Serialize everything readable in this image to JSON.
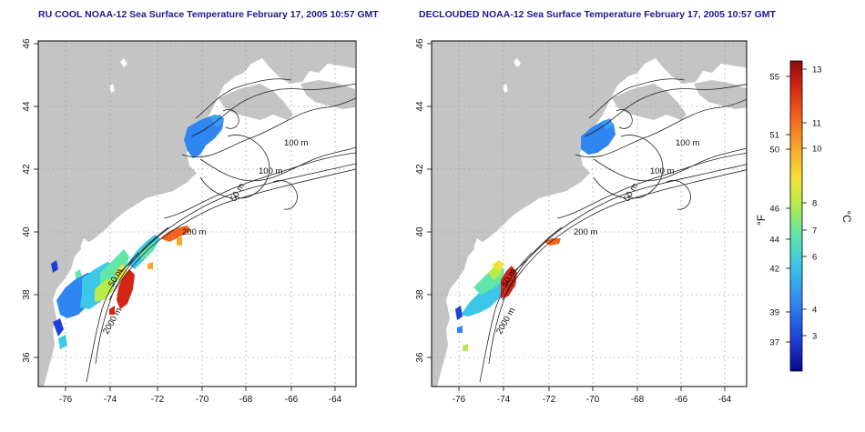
{
  "panels": [
    {
      "title": "RU COOL NOAA-12 Sea Surface Temperature February 17, 2005 10:57 GMT",
      "contours": [
        "100 m",
        "100 m",
        "50 m",
        "200 m",
        "50 m",
        "2000 m"
      ]
    },
    {
      "title": "DECLOUDED NOAA-12 Sea Surface Temperature February 17, 2005 10:57 GMT",
      "contours": [
        "100 m",
        "100 m",
        "50 m",
        "200 m",
        "50 m",
        "2000 m"
      ]
    }
  ],
  "axes": {
    "lon_ticks": [
      "-76",
      "-74",
      "-72",
      "-70",
      "-68",
      "-66",
      "-64"
    ],
    "lat_ticks": [
      "46",
      "44",
      "42",
      "40",
      "38",
      "36"
    ]
  },
  "colorbar": {
    "f_unit": "°F",
    "c_unit": "°C",
    "f_ticks": [
      "55",
      "51",
      "50",
      "46",
      "44",
      "42",
      "39",
      "37"
    ],
    "c_ticks": [
      "13",
      "11",
      "10",
      "8",
      "7",
      "6",
      "4",
      "3"
    ],
    "colors": [
      "#08088a",
      "#1f3fd8",
      "#2f86f0",
      "#3cc7e8",
      "#5fe6a8",
      "#b8ec4a",
      "#f2e23a",
      "#f7a72a",
      "#f0641e",
      "#d42414",
      "#8a0a0a"
    ]
  }
}
